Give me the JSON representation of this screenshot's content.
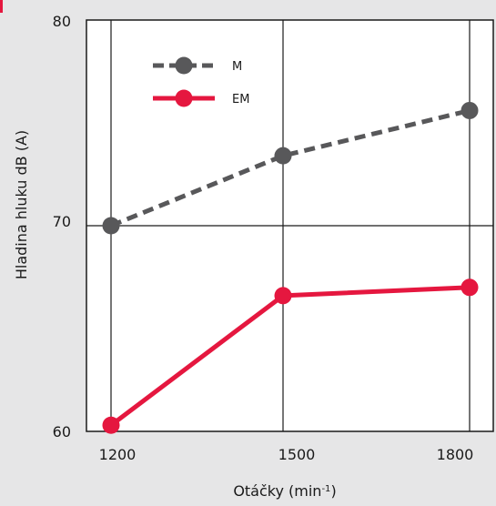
{
  "chart_data": {
    "type": "line",
    "xlabel_text": "Otáčky (min",
    "xlabel_sup": "-1",
    "xlabel_close": ")",
    "ylabel": "Hladina hluku dB (A)",
    "x": [
      1200,
      1500,
      1800
    ],
    "x_tick_labels": [
      "1200",
      "1500",
      "1800"
    ],
    "y_tick_labels": [
      "80",
      "70",
      "60"
    ],
    "ylim": [
      60,
      80
    ],
    "grid": true,
    "legend_position": "top-left",
    "series": [
      {
        "name": "M",
        "values": [
          70.0,
          73.4,
          75.6
        ],
        "color": "#58585a",
        "style": "dashed"
      },
      {
        "name": "EM",
        "values": [
          60.3,
          66.6,
          67.0
        ],
        "color": "#e5173f",
        "style": "solid"
      }
    ]
  }
}
